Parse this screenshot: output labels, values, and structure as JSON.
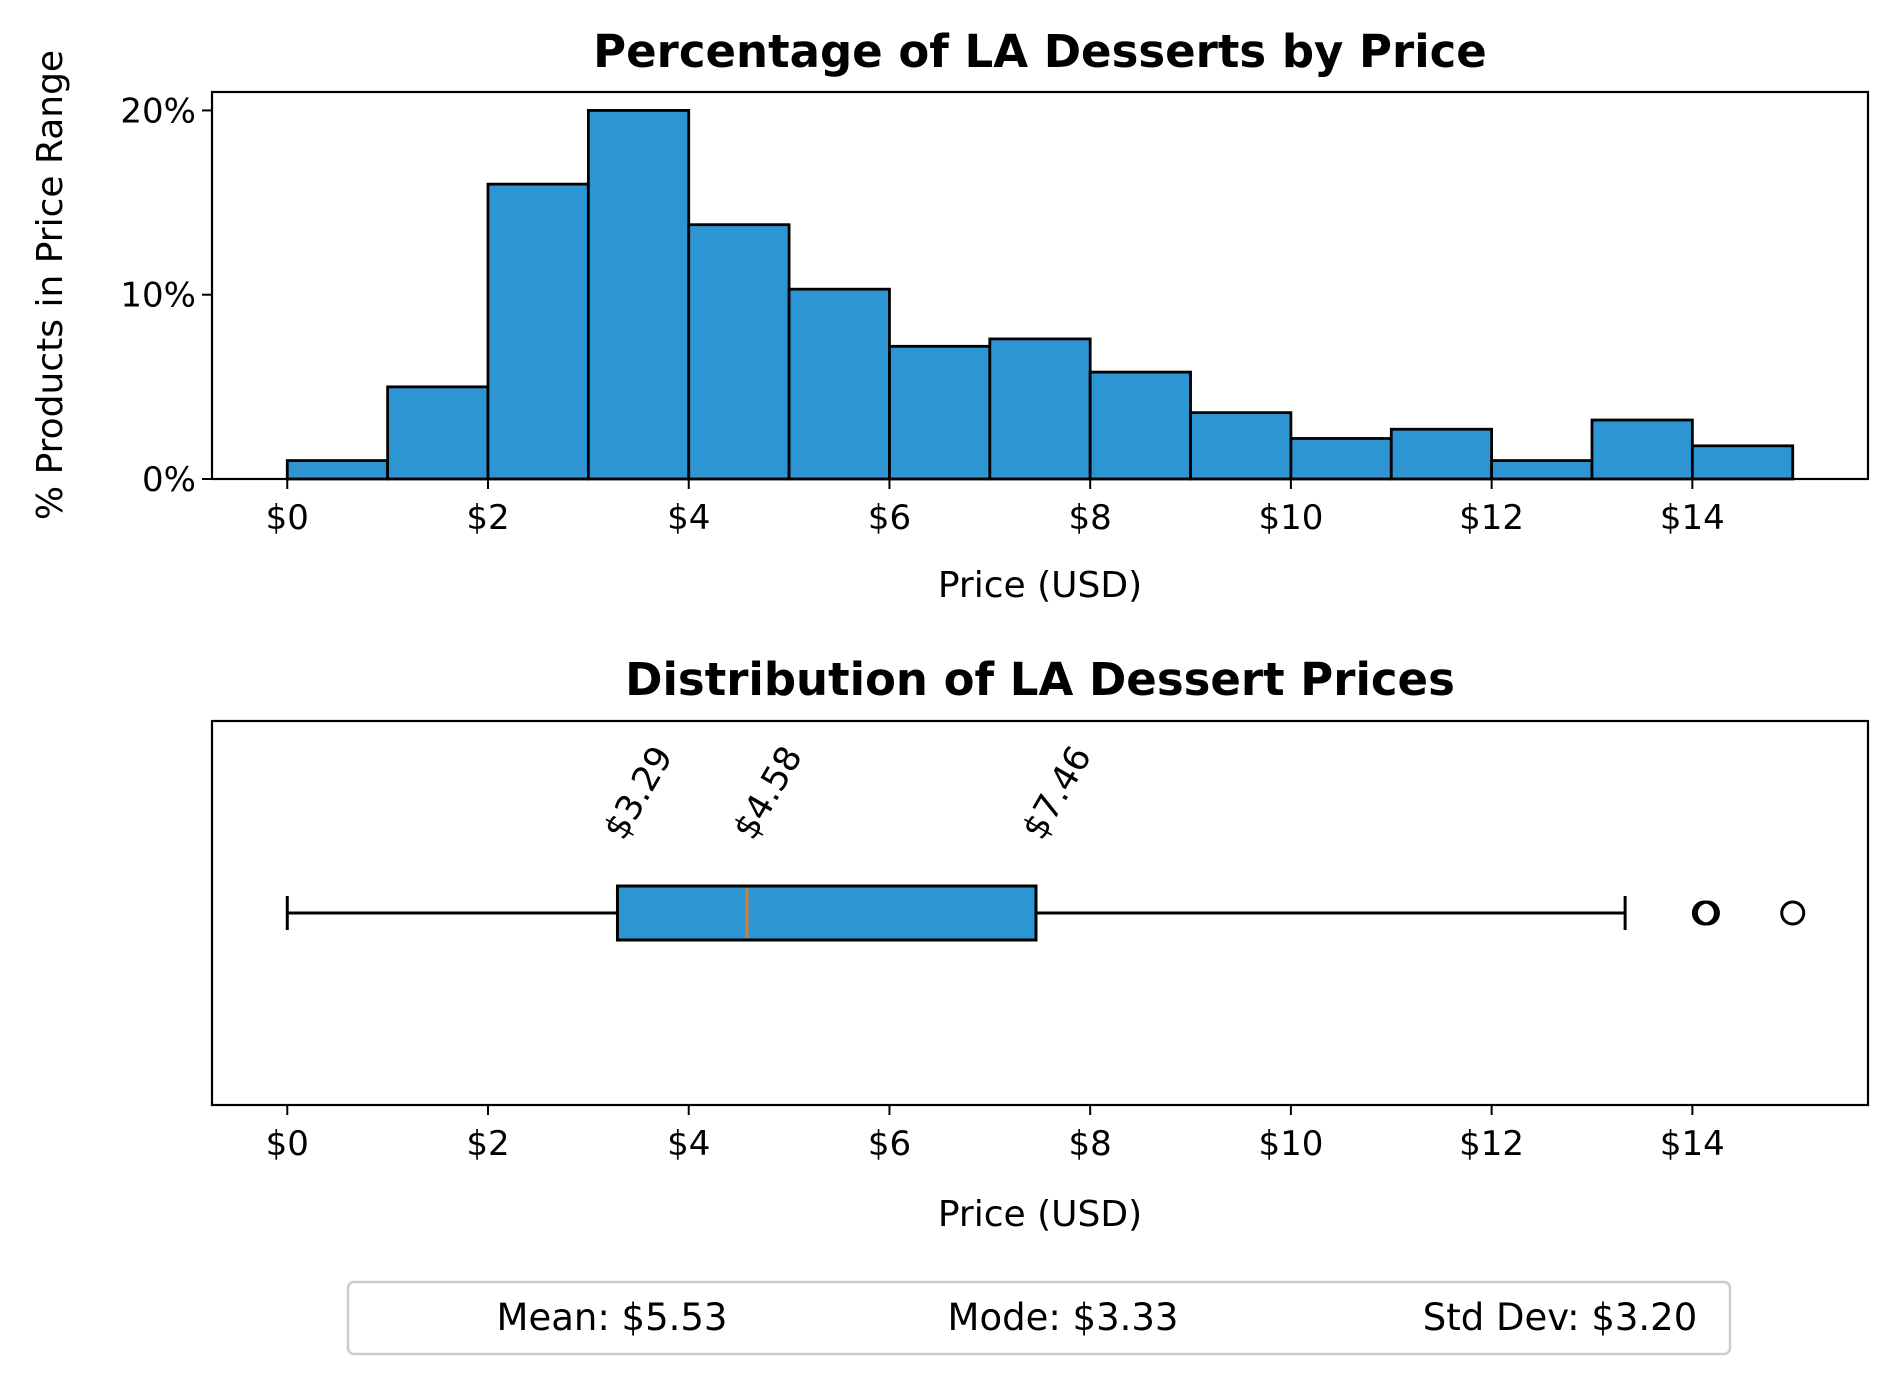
{
  "chart_data": [
    {
      "type": "bar",
      "title": "Percentage of LA Desserts by Price",
      "xlabel": "Price (USD)",
      "ylabel": "% Products in Price Range",
      "bin_edges": [
        0,
        1,
        2,
        3,
        4,
        5,
        6,
        7,
        8,
        9,
        10,
        11,
        12,
        13,
        14,
        15
      ],
      "values": [
        1.0,
        5.0,
        16.0,
        20.0,
        13.8,
        10.3,
        7.2,
        7.6,
        5.8,
        3.6,
        2.2,
        2.7,
        1.0,
        3.2,
        1.8
      ],
      "xlim": [
        -0.75,
        15.75
      ],
      "ylim": [
        0,
        21
      ],
      "xticks": [
        0,
        2,
        4,
        6,
        8,
        10,
        12,
        14
      ],
      "xtick_labels": [
        "$0",
        "$2",
        "$4",
        "$6",
        "$8",
        "$10",
        "$12",
        "$14"
      ],
      "yticks": [
        0,
        10,
        20
      ],
      "ytick_labels": [
        "0%",
        "10%",
        "20%"
      ],
      "bar_color": "#2e95d3",
      "edge_color": "#000000"
    },
    {
      "type": "box",
      "title": "Distribution of LA Dessert Prices",
      "xlabel": "Price (USD)",
      "whisker_low": 0,
      "q1": 3.29,
      "median": 4.58,
      "q3": 7.46,
      "whisker_high": 13.33,
      "outliers": [
        14.12,
        14.15,
        15.0
      ],
      "annotations": [
        "$3.29",
        "$4.58",
        "$7.46"
      ],
      "xlim": [
        -0.75,
        15.75
      ],
      "xticks": [
        0,
        2,
        4,
        6,
        8,
        10,
        12,
        14
      ],
      "xtick_labels": [
        "$0",
        "$2",
        "$4",
        "$6",
        "$8",
        "$10",
        "$12",
        "$14"
      ],
      "box_color": "#2e95d3",
      "median_color": "#d3802e"
    }
  ],
  "stats": {
    "mean": "Mean: $5.53",
    "mode": "Mode: $3.33",
    "std": "Std Dev: $3.20"
  }
}
